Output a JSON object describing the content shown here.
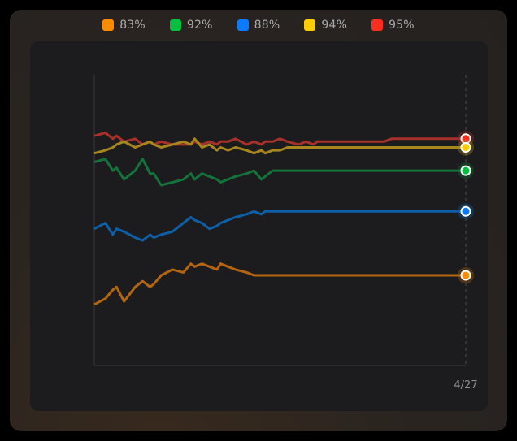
{
  "legend": [
    {
      "label": "83%",
      "color": "#FF8C00"
    },
    {
      "label": "92%",
      "color": "#00C040"
    },
    {
      "label": "88%",
      "color": "#0A7AFF"
    },
    {
      "label": "94%",
      "color": "#FFCC00"
    },
    {
      "label": "95%",
      "color": "#FF2D20"
    }
  ],
  "chart_data": {
    "type": "line",
    "title": "",
    "xlabel": "",
    "ylabel": "",
    "x_tick_labels": [
      "4/27"
    ],
    "x": [
      0,
      3,
      5,
      6,
      8,
      11,
      13,
      15,
      16,
      18,
      21,
      24,
      26,
      27,
      29,
      31,
      33,
      34,
      36,
      38,
      41,
      43,
      45,
      46,
      48,
      50,
      52,
      55,
      57,
      59,
      60,
      62,
      64,
      66,
      69,
      71,
      73,
      74,
      76,
      78,
      80,
      83,
      85,
      87,
      88,
      90,
      92,
      94,
      97,
      99,
      100
    ],
    "ylim": [
      0,
      100
    ],
    "grid": false,
    "series": [
      {
        "name": "95%",
        "color": "#a8302a",
        "values": [
          79,
          80,
          78,
          79,
          77,
          78,
          76,
          77,
          76,
          77,
          76,
          76,
          76,
          77,
          76,
          77,
          76,
          77,
          77,
          78,
          76,
          77,
          76,
          77,
          77,
          78,
          77,
          76,
          77,
          76,
          77,
          77,
          77,
          77,
          77,
          77,
          77,
          77,
          77,
          77,
          78,
          78,
          78,
          78,
          78,
          78,
          78,
          78,
          78,
          78,
          78
        ]
      },
      {
        "name": "94%",
        "color": "#a8861e",
        "values": [
          73,
          74,
          75,
          76,
          77,
          75,
          76,
          77,
          76,
          75,
          76,
          77,
          76,
          78,
          75,
          76,
          74,
          75,
          74,
          75,
          74,
          73,
          74,
          73,
          74,
          74,
          75,
          75,
          75,
          75,
          75,
          75,
          75,
          75,
          75,
          75,
          75,
          75,
          75,
          75,
          75,
          75,
          75,
          75,
          75,
          75,
          75,
          75,
          75,
          75,
          75
        ]
      },
      {
        "name": "92%",
        "color": "#13733a",
        "values": [
          70,
          71,
          67,
          68,
          64,
          67,
          71,
          66,
          66,
          62,
          63,
          64,
          66,
          64,
          66,
          65,
          64,
          63,
          64,
          65,
          66,
          67,
          64,
          65,
          67,
          67,
          67,
          67,
          67,
          67,
          67,
          67,
          67,
          67,
          67,
          67,
          67,
          67,
          67,
          67,
          67,
          67,
          67,
          67,
          67,
          67,
          67,
          67,
          67,
          67,
          67
        ]
      },
      {
        "name": "88%",
        "color": "#0d5fa8",
        "values": [
          47,
          49,
          45,
          47,
          46,
          44,
          43,
          45,
          44,
          45,
          46,
          49,
          51,
          50,
          49,
          47,
          48,
          49,
          50,
          51,
          52,
          53,
          52,
          53,
          53,
          53,
          53,
          53,
          53,
          53,
          53,
          53,
          53,
          53,
          53,
          53,
          53,
          53,
          53,
          53,
          53,
          53,
          53,
          53,
          53,
          53,
          53,
          53,
          53,
          53,
          53
        ]
      },
      {
        "name": "83%",
        "color": "#b5650f",
        "values": [
          21,
          23,
          26,
          27,
          22,
          27,
          29,
          27,
          28,
          31,
          33,
          32,
          35,
          34,
          35,
          34,
          33,
          35,
          34,
          33,
          32,
          31,
          31,
          31,
          31,
          31,
          31,
          31,
          31,
          31,
          31,
          31,
          31,
          31,
          31,
          31,
          31,
          31,
          31,
          31,
          31,
          31,
          31,
          31,
          31,
          31,
          31,
          31,
          31,
          31,
          31
        ]
      }
    ]
  }
}
